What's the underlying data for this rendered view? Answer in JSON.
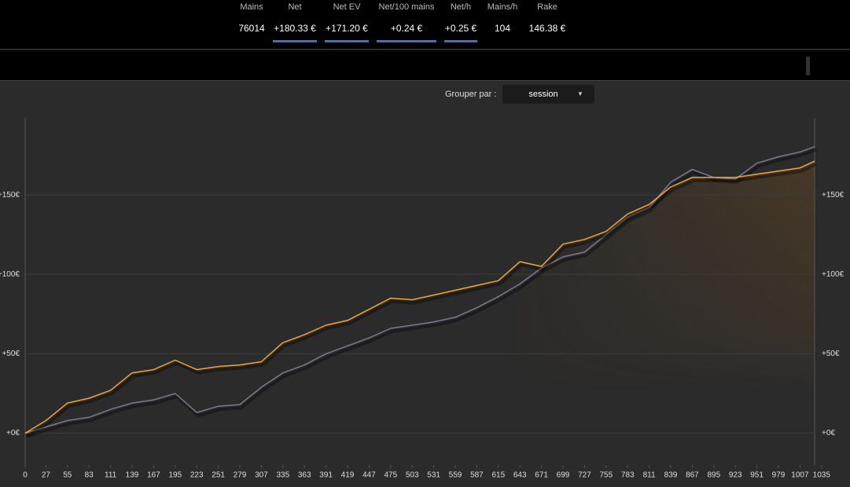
{
  "header": {
    "stats": [
      {
        "label": "Mains",
        "value": "76014",
        "underline": false
      },
      {
        "label": "Net",
        "value": "+180.33 €",
        "underline": true
      },
      {
        "label": "Net EV",
        "value": "+171.20 €",
        "underline": true
      },
      {
        "label": "Net/100 mains",
        "value": "+0.24 €",
        "underline": true
      },
      {
        "label": "Net/h",
        "value": "+0.25 €",
        "underline": true
      },
      {
        "label": "Mains/h",
        "value": "104",
        "underline": false
      },
      {
        "label": "Rake",
        "value": "146.38 €",
        "underline": false
      }
    ]
  },
  "grouping": {
    "label": "Grouper par :",
    "selected": "session"
  },
  "chart_data": {
    "type": "line",
    "x": [
      0,
      27,
      55,
      83,
      111,
      139,
      167,
      195,
      223,
      251,
      279,
      307,
      335,
      363,
      391,
      419,
      447,
      475,
      503,
      531,
      559,
      587,
      615,
      643,
      671,
      699,
      727,
      755,
      783,
      811,
      839,
      867,
      895,
      923,
      951,
      979,
      1007,
      1026
    ],
    "series": [
      {
        "color": "#7d7890",
        "values": [
          0,
          4,
          8,
          10,
          15,
          19,
          21,
          25,
          13,
          17,
          18,
          29,
          38,
          43,
          50,
          55,
          60,
          66,
          68,
          70,
          73,
          79,
          86,
          94,
          104,
          111,
          114,
          125,
          136,
          142,
          158,
          166,
          161,
          160,
          170,
          174,
          177,
          180.33
        ]
      },
      {
        "color": "#f5a623",
        "fill": true,
        "values": [
          0,
          8,
          19,
          22,
          27,
          38,
          40,
          46,
          40,
          42,
          43,
          45,
          57,
          62,
          68,
          71,
          78,
          85,
          84,
          87,
          90,
          93,
          96,
          108,
          105,
          119,
          122,
          127,
          138,
          144,
          155,
          161,
          161,
          161,
          163,
          165,
          167,
          171.2
        ]
      }
    ],
    "xlim": [
      0,
      1026
    ],
    "ylim": [
      -20,
      198.5
    ],
    "xticks": [
      0,
      27,
      55,
      83,
      111,
      139,
      167,
      195,
      223,
      251,
      279,
      307,
      335,
      363,
      391,
      419,
      447,
      475,
      503,
      531,
      559,
      587,
      615,
      643,
      671,
      699,
      727,
      755,
      783,
      811,
      839,
      867,
      895,
      923,
      951,
      979,
      1007,
      1035
    ],
    "yticks": [
      {
        "value": 0,
        "label": "+0€"
      },
      {
        "value": 50,
        "label": "+50€"
      },
      {
        "value": 100,
        "label": "+100€"
      },
      {
        "value": 150,
        "label": "+150€"
      }
    ],
    "grid": true
  }
}
